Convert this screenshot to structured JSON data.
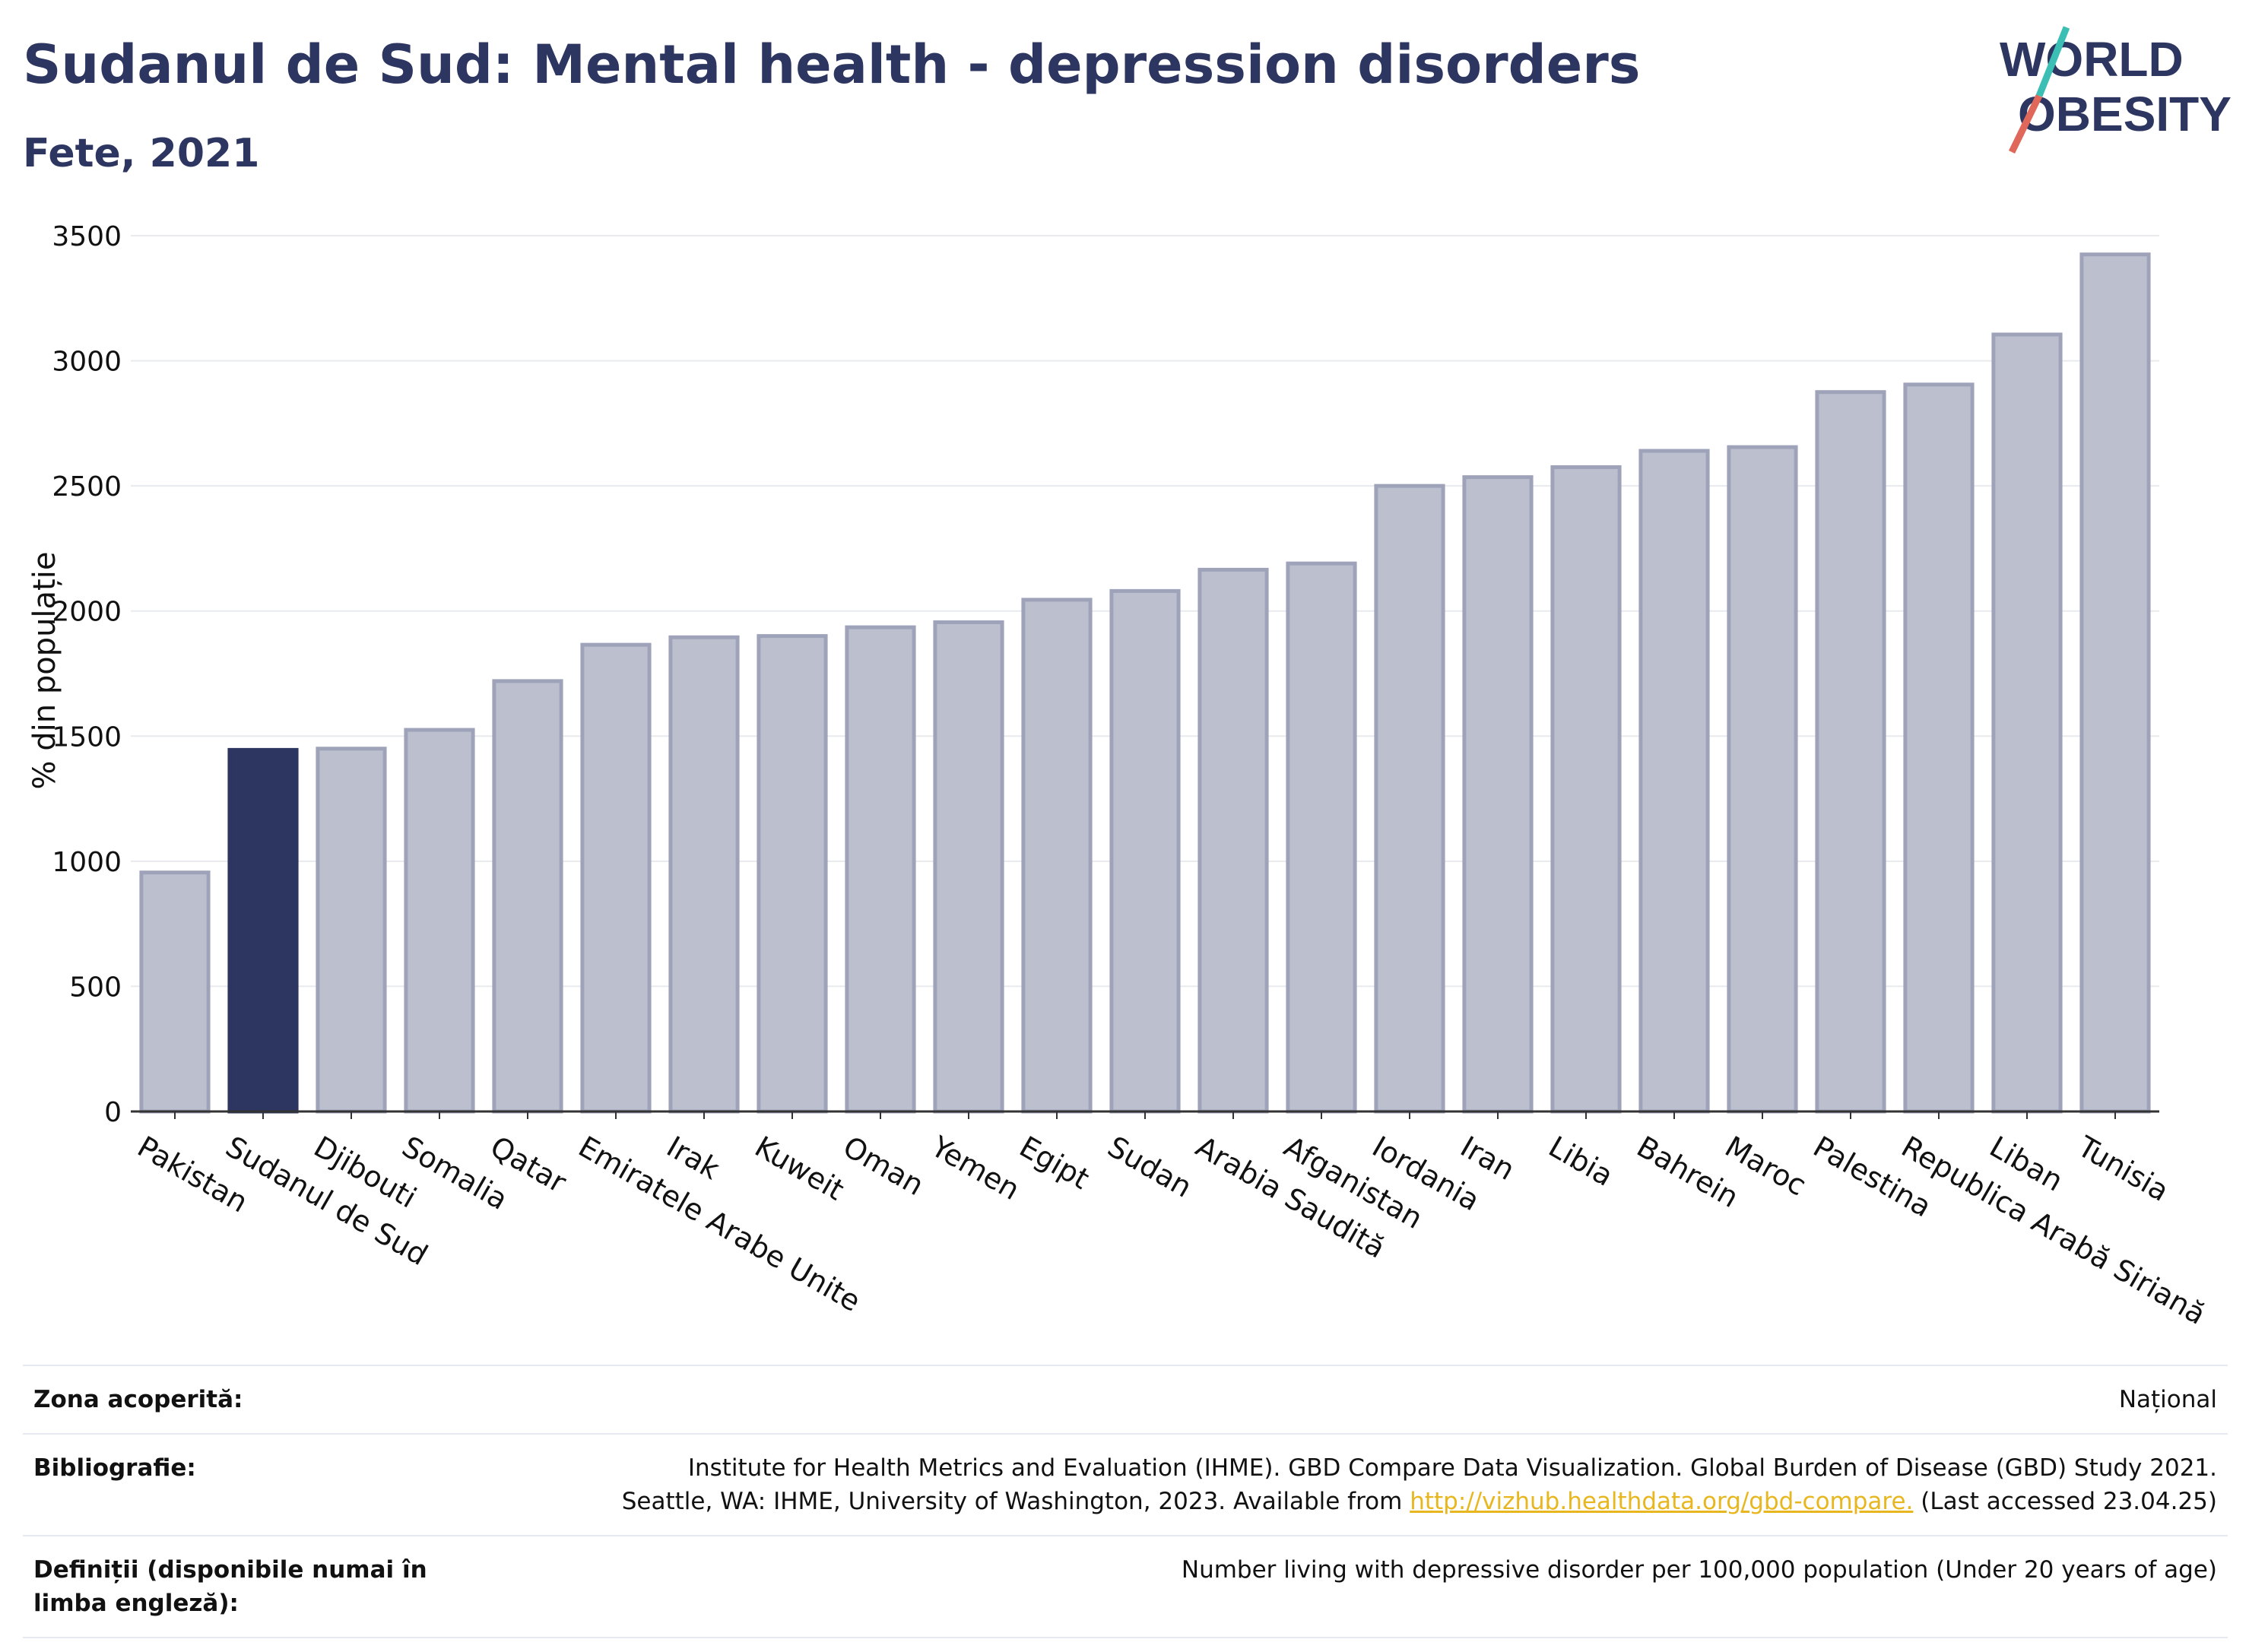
{
  "header": {
    "title": "Sudanul de Sud: Mental health - depression disorders",
    "subtitle": "Fete, 2021"
  },
  "logo": {
    "line1": "WORLD",
    "line2": "OBESITY"
  },
  "colors": {
    "highlight": "#2d3561",
    "bar": "#bcc0ce",
    "bar_edge": "#9ea3ba",
    "grid": "#e8eaee",
    "accent_teal": "#3bbfb4",
    "accent_red": "#e0685a"
  },
  "chart_data": {
    "type": "bar",
    "ylabel": "% din populație",
    "ylim": [
      0,
      3500
    ],
    "yticks": [
      0,
      500,
      1000,
      1500,
      2000,
      2500,
      3000,
      3500
    ],
    "grid": true,
    "highlight": "Sudanul de Sud",
    "categories": [
      "Pakistan",
      "Sudanul de Sud",
      "Djibouti",
      "Somalia",
      "Qatar",
      "Emiratele Arabe Unite",
      "Irak",
      "Kuweit",
      "Oman",
      "Yemen",
      "Egipt",
      "Sudan",
      "Arabia Saudită",
      "Afganistan",
      "Iordania",
      "Iran",
      "Libia",
      "Bahrein",
      "Maroc",
      "Palestina",
      "Republica Arabă Siriană",
      "Liban",
      "Tunisia"
    ],
    "values": [
      955,
      1445,
      1450,
      1525,
      1720,
      1865,
      1895,
      1900,
      1935,
      1955,
      2045,
      2080,
      2165,
      2190,
      2500,
      2535,
      2575,
      2640,
      2655,
      2875,
      2905,
      3105,
      3425
    ]
  },
  "footer": {
    "coverage_label": "Zona acoperită:",
    "coverage_value": "Național",
    "biblio_label": "Bibliografie:",
    "biblio_line1": "Institute for Health Metrics and Evaluation (IHME). GBD Compare Data Visualization. Global Burden of Disease (GBD) Study 2021.",
    "biblio_line2_pre": "Seattle, WA: IHME, University of Washington, 2023. Available from",
    "biblio_link": "http://vizhub.healthdata.org/gbd-compare.",
    "biblio_line2_post": "(Last accessed 23.04.25)",
    "definitions_label": "Definiții (disponibile numai în limba engleză):",
    "definitions_value": "Number living with depressive disorder per 100,000 population (Under 20 years of age)"
  }
}
